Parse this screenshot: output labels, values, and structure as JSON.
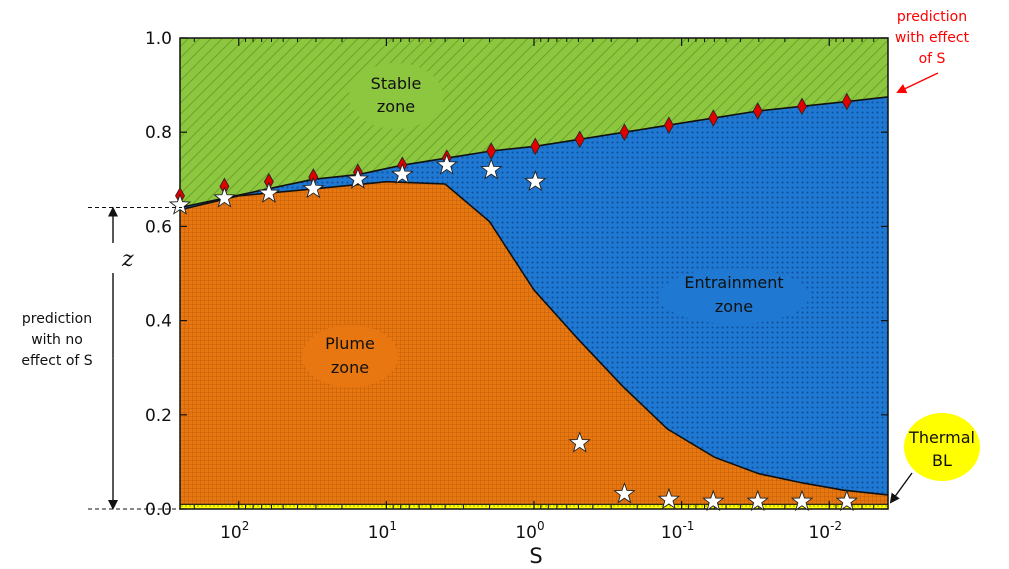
{
  "chart_data": {
    "type": "area",
    "x_scale": "log",
    "x_reversed": true,
    "xlim": [
      0.004,
      250
    ],
    "ylim": [
      0,
      1
    ],
    "xlabel": "S",
    "ylabel": "",
    "x_ticks": [
      {
        "value": 100,
        "base": "10",
        "exp": "2"
      },
      {
        "value": 10,
        "base": "10",
        "exp": "1"
      },
      {
        "value": 1,
        "base": "10",
        "exp": "0"
      },
      {
        "value": 0.1,
        "base": "10",
        "exp": "-1"
      },
      {
        "value": 0.01,
        "base": "10",
        "exp": "-2"
      }
    ],
    "y_ticks": [
      "0.0",
      "0.2",
      "0.4",
      "0.6",
      "0.8",
      "1.0"
    ],
    "grid": false,
    "boundaries": {
      "stable_boundary": {
        "x": [
          250,
          125,
          62.5,
          31.25,
          15.6,
          7.8,
          3.9,
          1.95,
          0.98,
          0.49,
          0.244,
          0.122,
          0.061,
          0.0305,
          0.0153,
          0.0076,
          0.004
        ],
        "y": [
          0.64,
          0.66,
          0.68,
          0.7,
          0.71,
          0.73,
          0.745,
          0.76,
          0.77,
          0.785,
          0.8,
          0.815,
          0.83,
          0.845,
          0.855,
          0.865,
          0.875
        ]
      },
      "plume_boundary": {
        "x": [
          250,
          100,
          30,
          10,
          4,
          2,
          1,
          0.5,
          0.25,
          0.125,
          0.06,
          0.03,
          0.015,
          0.008,
          0.004
        ],
        "y": [
          0.635,
          0.665,
          0.68,
          0.695,
          0.69,
          0.61,
          0.465,
          0.36,
          0.26,
          0.17,
          0.11,
          0.075,
          0.055,
          0.04,
          0.03
        ]
      },
      "thermal_bl_top": 0.01
    },
    "series": [
      {
        "name": "prediction with effect of S",
        "marker": "diamond",
        "color": "#e00000",
        "x": [
          250,
          125,
          62.5,
          31.25,
          15.6,
          7.8,
          3.9,
          1.95,
          0.98,
          0.49,
          0.244,
          0.122,
          0.061,
          0.0305,
          0.0153,
          0.0076
        ],
        "y": [
          0.665,
          0.685,
          0.695,
          0.705,
          0.715,
          0.73,
          0.745,
          0.76,
          0.77,
          0.785,
          0.8,
          0.815,
          0.83,
          0.845,
          0.855,
          0.865
        ]
      },
      {
        "name": "",
        "marker": "star",
        "color": "#ffffff",
        "x": [
          250,
          125,
          62.5,
          31.25,
          15.6,
          7.8,
          3.9,
          1.95,
          0.98,
          0.49,
          0.244,
          0.122,
          0.061,
          0.0305,
          0.0153,
          0.0076
        ],
        "y": [
          0.645,
          0.66,
          0.67,
          0.68,
          0.7,
          0.71,
          0.73,
          0.72,
          0.695,
          0.14,
          0.032,
          0.02,
          0.016,
          0.016,
          0.016,
          0.016
        ]
      }
    ],
    "zones": [
      {
        "line1": "Stable",
        "line2": "zone",
        "color": "#8dc63f"
      },
      {
        "line1": "Entrainment",
        "line2": "zone",
        "color": "#1f78d1"
      },
      {
        "line1": "Plume",
        "line2": "zone",
        "color": "#e87712"
      },
      {
        "line1": "Thermal",
        "line2": "BL",
        "color": "#ffff00"
      }
    ],
    "annotations": {
      "effect_lines": [
        "prediction",
        "with effect",
        "of S"
      ],
      "no_effect_lines": [
        "prediction",
        "with no",
        "effect of S"
      ],
      "z_symbol": "z",
      "no_effect_z": [
        0,
        0.64
      ]
    }
  }
}
